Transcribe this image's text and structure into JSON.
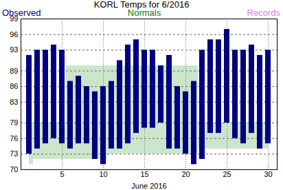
{
  "chart_data": {
    "type": "bar",
    "title": "KORL Temps for 6/2016",
    "x_label": "June 2016",
    "x": [
      1,
      2,
      3,
      4,
      5,
      6,
      7,
      8,
      9,
      10,
      11,
      12,
      13,
      14,
      15,
      16,
      17,
      18,
      19,
      20,
      21,
      22,
      23,
      24,
      25,
      26,
      27,
      28,
      29,
      30
    ],
    "xticks": [
      5,
      10,
      15,
      20,
      25,
      30
    ],
    "ylim": [
      70,
      99
    ],
    "yticks": [
      70,
      73,
      76,
      79,
      83,
      86,
      89,
      93,
      96,
      99
    ],
    "grid": true,
    "series": [
      {
        "name": "Observed",
        "type": "bar",
        "color": "#000080",
        "high": [
          92,
          93,
          93,
          94,
          93,
          87,
          88,
          86,
          85,
          86,
          87,
          91,
          94,
          95,
          93,
          93,
          90,
          92,
          86,
          85,
          87,
          93,
          95,
          95,
          97,
          93,
          93,
          94,
          92,
          93
        ],
        "low": [
          73,
          74,
          75,
          76,
          75,
          74,
          75,
          75,
          72,
          71,
          74,
          74,
          75,
          77,
          78,
          78,
          79,
          74,
          74,
          73,
          71,
          72,
          77,
          77,
          79,
          76,
          75,
          77,
          74,
          75
        ]
      },
      {
        "name": "Normals",
        "type": "area",
        "color": "#008000",
        "high": [
          79,
          79,
          79,
          79,
          79,
          90,
          90,
          90,
          90,
          90,
          90,
          90,
          90,
          90,
          90,
          90,
          90,
          90,
          90,
          90,
          90,
          79,
          79,
          79,
          79,
          79,
          79,
          79,
          79,
          79
        ],
        "low": [
          71,
          72,
          72,
          72,
          72,
          72,
          72,
          72,
          72,
          72,
          73,
          73,
          73,
          73,
          73,
          73,
          73,
          73,
          73,
          73,
          73,
          74,
          74,
          74,
          74,
          74,
          74,
          74,
          74,
          74
        ]
      },
      {
        "name": "Records",
        "type": "bar",
        "color": "#cc88dd",
        "high": [
          null,
          null,
          null,
          null,
          null,
          null,
          null,
          null,
          null,
          null,
          null,
          null,
          null,
          null,
          null,
          null,
          null,
          null,
          null,
          null,
          null,
          null,
          null,
          null,
          null,
          null,
          null,
          null,
          null,
          null
        ],
        "low": [
          null,
          null,
          null,
          null,
          null,
          null,
          null,
          null,
          null,
          null,
          null,
          null,
          null,
          null,
          null,
          null,
          null,
          null,
          null,
          null,
          null,
          null,
          null,
          null,
          null,
          null,
          null,
          null,
          null,
          null
        ]
      }
    ]
  }
}
